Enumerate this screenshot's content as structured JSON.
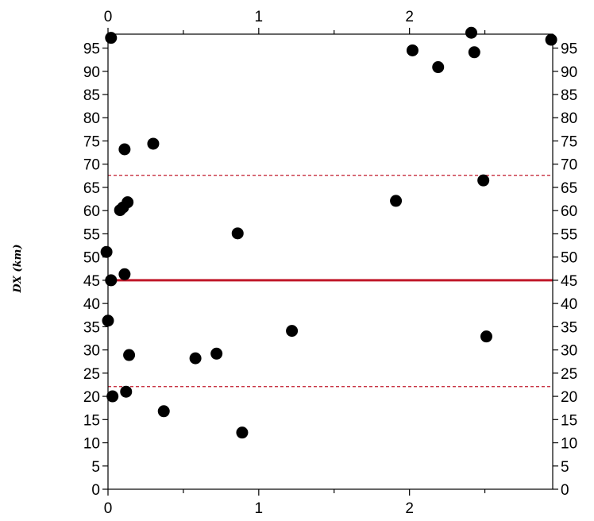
{
  "chart_data": {
    "type": "scatter",
    "ylabel": "DX (km)",
    "xlabel": "",
    "xlim": [
      0,
      2.95
    ],
    "ylim": [
      0,
      98
    ],
    "x_ticks": [
      0,
      1,
      2
    ],
    "x_tick_labels": [
      "0",
      "1",
      "2"
    ],
    "y_ticks": [
      0,
      5,
      10,
      15,
      20,
      25,
      30,
      35,
      40,
      45,
      50,
      55,
      60,
      65,
      70,
      75,
      80,
      85,
      90,
      95
    ],
    "y_tick_labels": [
      "0",
      "5",
      "10",
      "15",
      "20",
      "25",
      "30",
      "35",
      "40",
      "45",
      "50",
      "55",
      "60",
      "65",
      "70",
      "75",
      "80",
      "85",
      "90",
      "95"
    ],
    "grid": false,
    "point_color": "#000000",
    "line_color": "#c0182a",
    "reference_lines": [
      {
        "y": 45,
        "style": "solid"
      },
      {
        "y": 67.6,
        "style": "dashed"
      },
      {
        "y": 22.1,
        "style": "dashed"
      }
    ],
    "points": [
      {
        "x": 0.02,
        "y": 97.2
      },
      {
        "x": 2.02,
        "y": 94.5
      },
      {
        "x": 2.41,
        "y": 98.3
      },
      {
        "x": 2.43,
        "y": 94.1
      },
      {
        "x": 2.94,
        "y": 96.8
      },
      {
        "x": 2.19,
        "y": 90.9
      },
      {
        "x": 0.3,
        "y": 74.4
      },
      {
        "x": 0.11,
        "y": 73.2
      },
      {
        "x": 2.49,
        "y": 66.5
      },
      {
        "x": 1.91,
        "y": 62.1
      },
      {
        "x": 0.13,
        "y": 61.8
      },
      {
        "x": 0.1,
        "y": 60.7
      },
      {
        "x": 0.08,
        "y": 60.1
      },
      {
        "x": 0.86,
        "y": 55.1
      },
      {
        "x": -0.01,
        "y": 51.1
      },
      {
        "x": 0.11,
        "y": 46.3
      },
      {
        "x": 0.02,
        "y": 45.0
      },
      {
        "x": 0.0,
        "y": 36.3
      },
      {
        "x": 1.22,
        "y": 34.1
      },
      {
        "x": 2.51,
        "y": 32.9
      },
      {
        "x": 0.72,
        "y": 29.2
      },
      {
        "x": 0.14,
        "y": 28.9
      },
      {
        "x": 0.58,
        "y": 28.2
      },
      {
        "x": 0.12,
        "y": 21.0
      },
      {
        "x": 0.03,
        "y": 20.0
      },
      {
        "x": 0.37,
        "y": 16.8
      },
      {
        "x": 0.89,
        "y": 12.2
      }
    ]
  }
}
